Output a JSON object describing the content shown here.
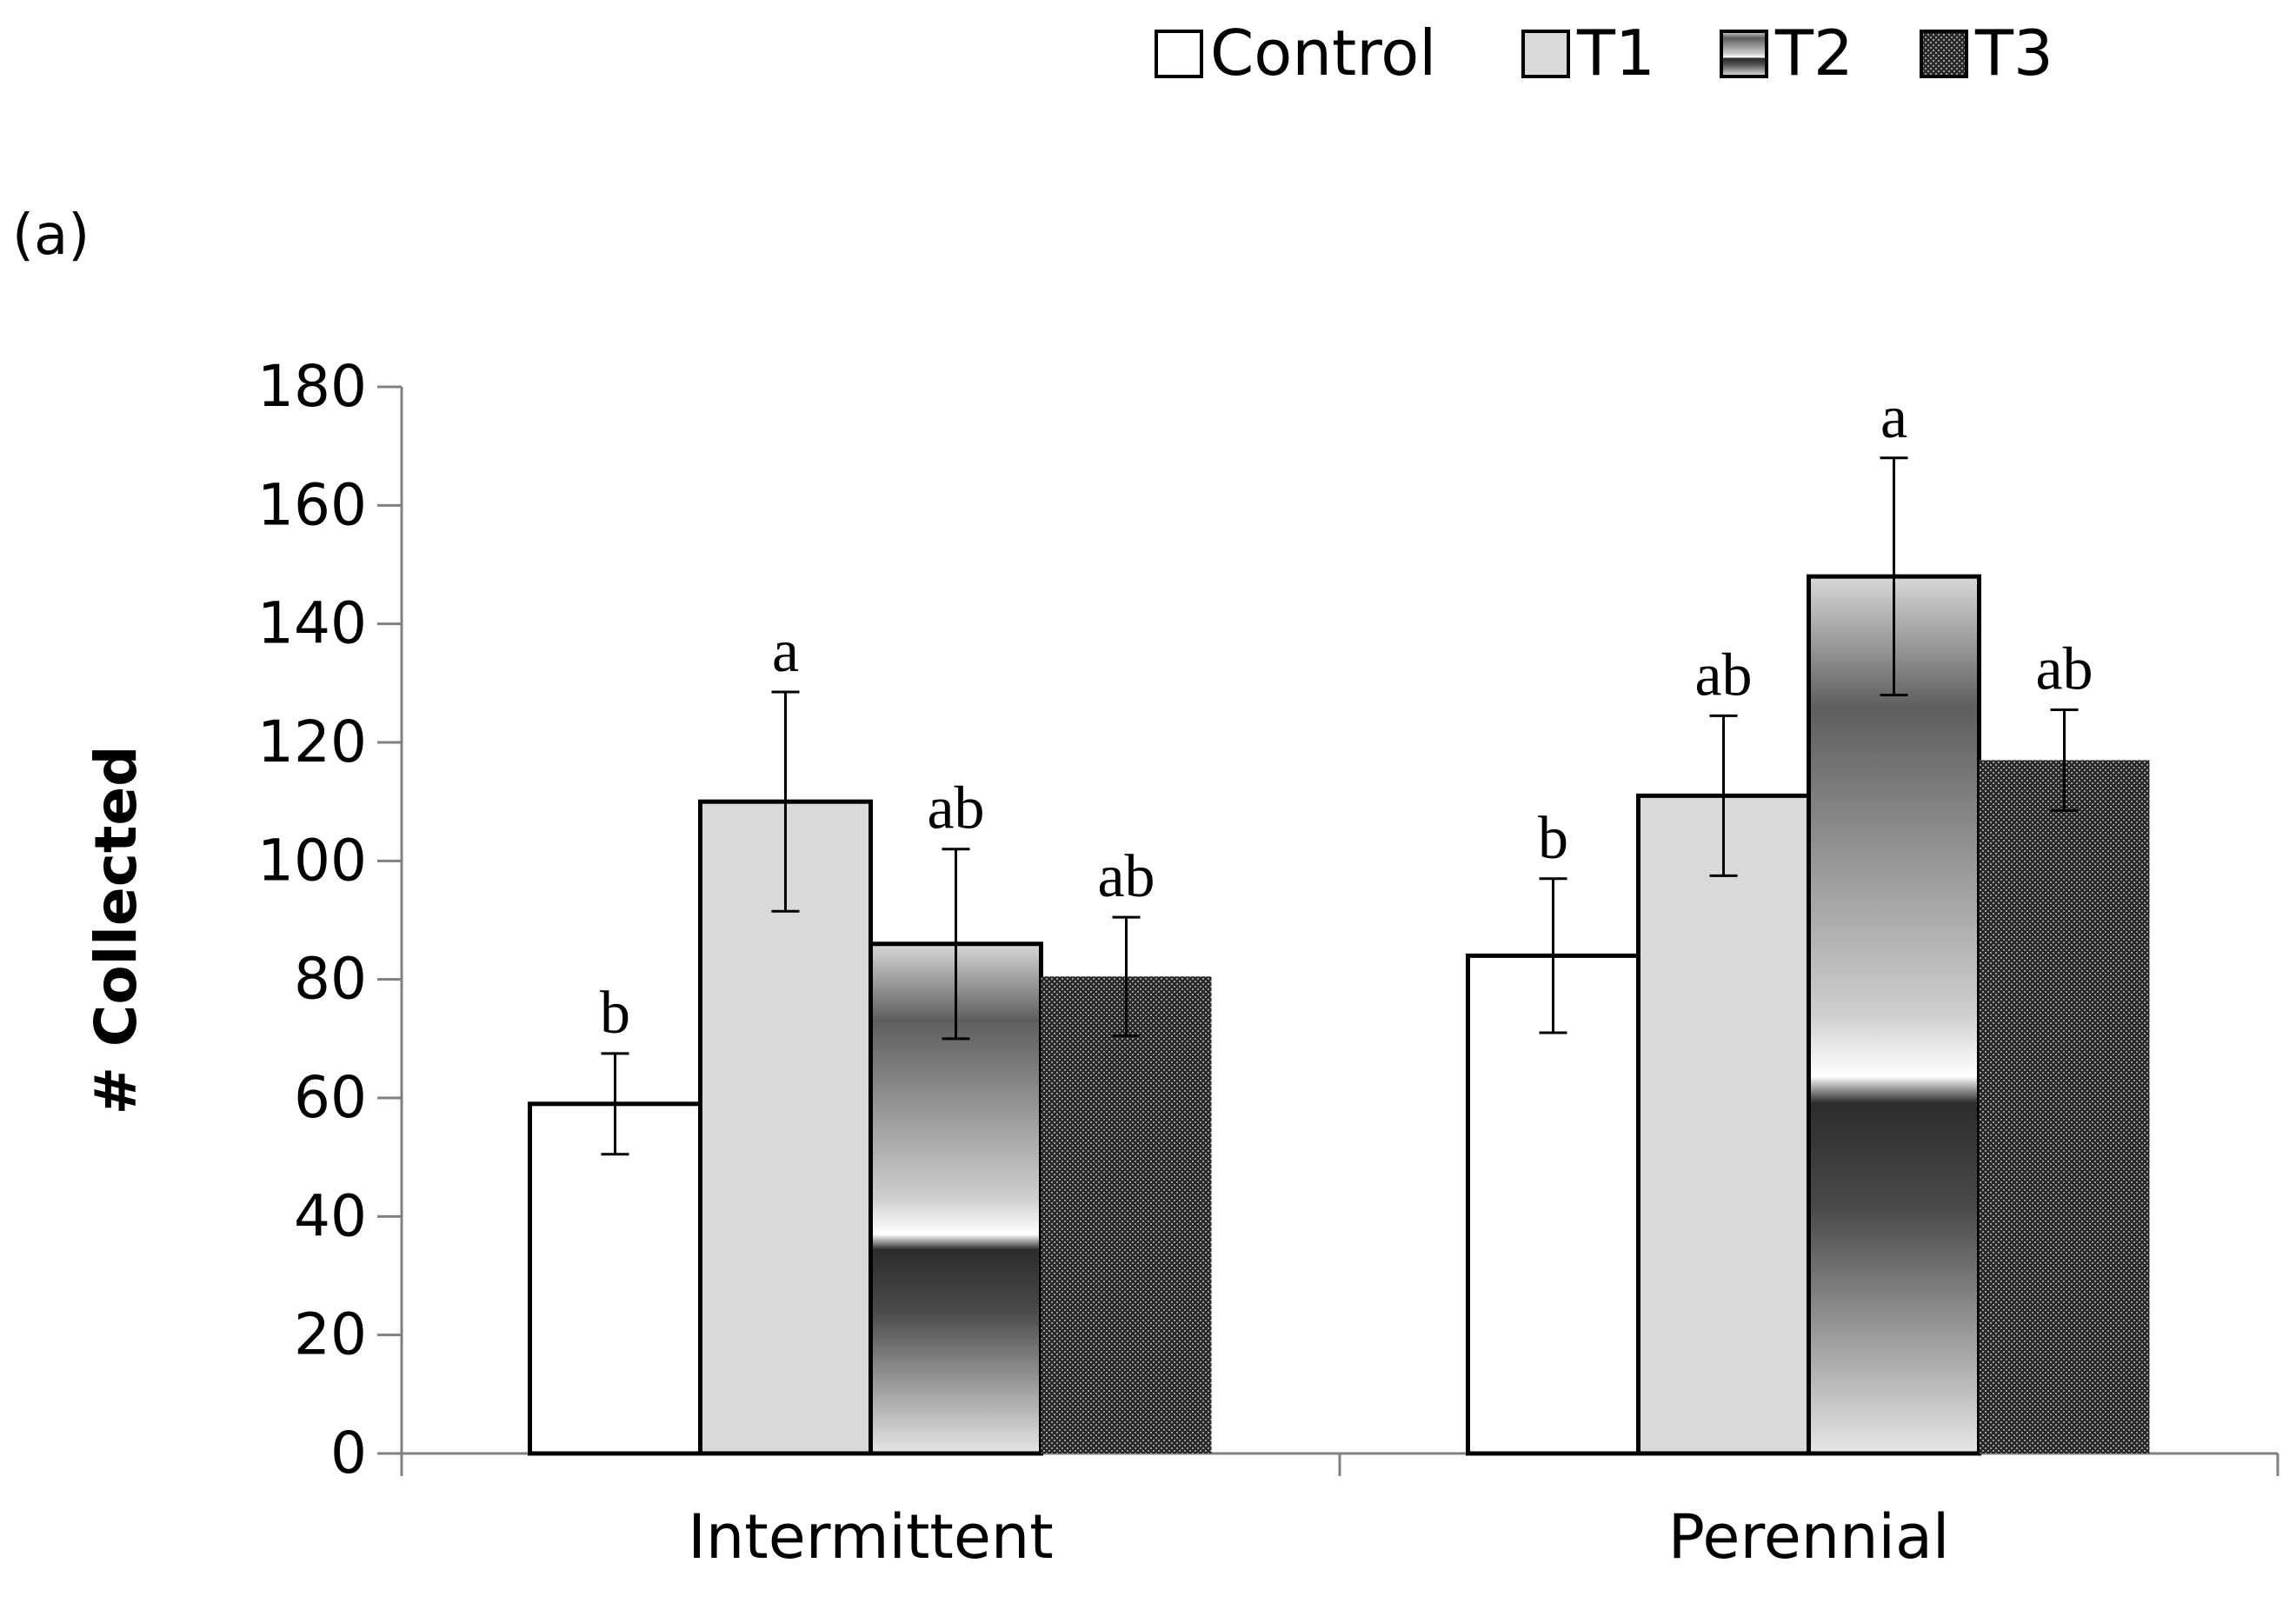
{
  "panel_label": "(a)",
  "chart_data": {
    "type": "bar",
    "title": "",
    "xlabel": "",
    "ylabel": "# Collected",
    "ylim": [
      0,
      180
    ],
    "yticks": [
      0,
      20,
      40,
      60,
      80,
      100,
      120,
      140,
      160,
      180
    ],
    "categories": [
      "Intermittent",
      "Perennial"
    ],
    "legend_position": "top",
    "series": [
      {
        "name": "Control",
        "values": [
          59,
          84
        ],
        "errors": [
          8.5,
          13
        ],
        "letters": [
          "b",
          "b"
        ]
      },
      {
        "name": "T1",
        "values": [
          110,
          111
        ],
        "errors": [
          18.5,
          13.5
        ],
        "letters": [
          "a",
          "ab"
        ]
      },
      {
        "name": "T2",
        "values": [
          86,
          148
        ],
        "errors": [
          16,
          20
        ],
        "letters": [
          "ab",
          "a"
        ]
      },
      {
        "name": "T3",
        "values": [
          80.5,
          117
        ],
        "errors": [
          10,
          8.5
        ],
        "letters": [
          "ab",
          "ab"
        ]
      }
    ]
  }
}
